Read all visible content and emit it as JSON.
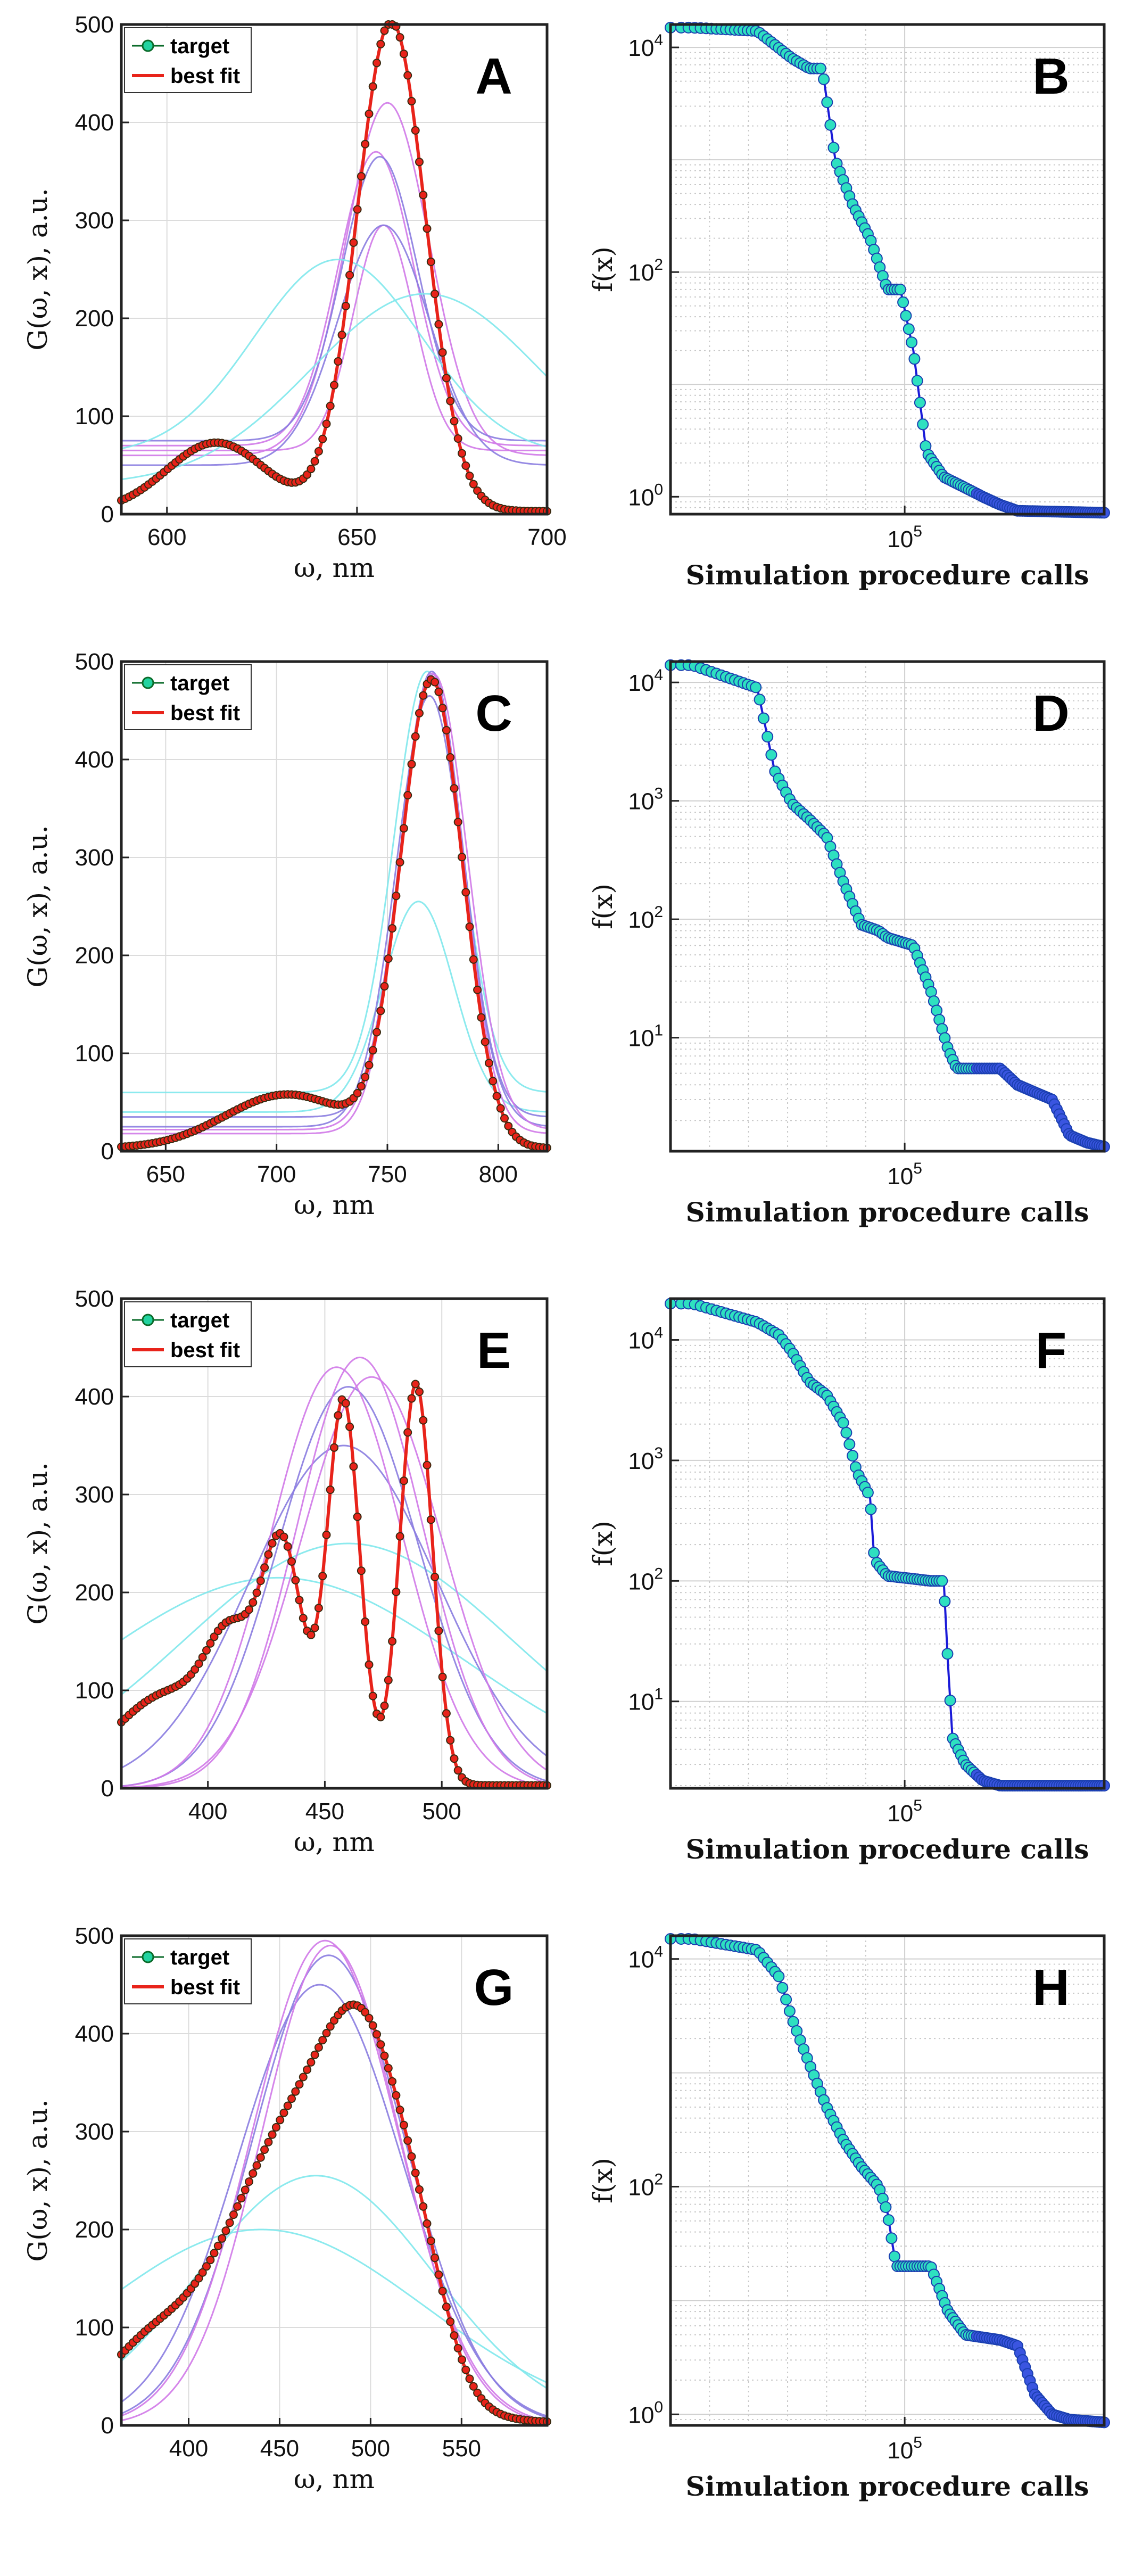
{
  "colors": {
    "target_fill": "#22d3a0",
    "target_edge": "#0b6b2a",
    "best_fit": "#e8231a",
    "conv_line": "#1a1ad8",
    "conv_marker_fill": "#2ee0c0",
    "conv_marker_edge": "#1a3fb0",
    "trial_pink": "#d079e8",
    "trial_violet": "#8a7ce0",
    "trial_cyan": "#7fe8ec"
  },
  "chart_data": [
    {
      "panel": "A",
      "type": "line",
      "legend": [
        "target",
        "best fit"
      ],
      "legend_position": "top-left",
      "xlabel": "ω, nm",
      "ylabel": "G(ω, x), a.u.",
      "xlim": [
        588,
        700
      ],
      "ylim": [
        0,
        500
      ],
      "xticks": [
        600,
        650,
        700
      ],
      "yticks": [
        0,
        100,
        200,
        300,
        400,
        500
      ],
      "target_peaks": [
        {
          "amp": 70,
          "center": 613,
          "width": 13
        },
        {
          "amp": 500,
          "center": 659,
          "width": 9
        }
      ],
      "trials": [
        {
          "color": "trial_pink",
          "peaks": [
            {
              "amp": 360,
              "center": 658,
              "width": 11
            }
          ],
          "base": 60
        },
        {
          "color": "trial_pink",
          "peaks": [
            {
              "amp": 300,
              "center": 655,
              "width": 10
            }
          ],
          "base": 70
        },
        {
          "color": "trial_pink",
          "peaks": [
            {
              "amp": 230,
              "center": 657,
              "width": 8
            }
          ],
          "base": 65
        },
        {
          "color": "trial_violet",
          "peaks": [
            {
              "amp": 245,
              "center": 657,
              "width": 12
            }
          ],
          "base": 50
        },
        {
          "color": "trial_violet",
          "peaks": [
            {
              "amp": 290,
              "center": 656,
              "width": 10
            }
          ],
          "base": 75
        },
        {
          "color": "trial_cyan",
          "peaks": [
            {
              "amp": 200,
              "center": 645,
              "width": 22
            }
          ],
          "base": 60
        },
        {
          "color": "trial_cyan",
          "peaks": [
            {
              "amp": 195,
              "center": 668,
              "width": 30
            }
          ],
          "base": 30
        }
      ]
    },
    {
      "panel": "B",
      "type": "line",
      "xlabel": "Simulation procedure calls",
      "ylabel": "f(x)",
      "yscale": "log",
      "ylim": [
        0.7,
        16000
      ],
      "yticks": [
        {
          "value": 1,
          "label": "10^0"
        },
        {
          "value": 100,
          "label": "10^2"
        },
        {
          "value": 10000,
          "label": "10^4"
        }
      ],
      "xtick": {
        "label": "10^5",
        "position": 0.54
      },
      "curve": [
        [
          0,
          15000
        ],
        [
          0.05,
          15000
        ],
        [
          0.2,
          14000
        ],
        [
          0.28,
          8000
        ],
        [
          0.32,
          6500
        ],
        [
          0.35,
          6500
        ],
        [
          0.38,
          1000
        ],
        [
          0.42,
          400
        ],
        [
          0.46,
          200
        ],
        [
          0.5,
          70
        ],
        [
          0.53,
          70
        ],
        [
          0.56,
          20
        ],
        [
          0.59,
          2.5
        ],
        [
          0.63,
          1.5
        ],
        [
          0.68,
          1.2
        ],
        [
          0.72,
          1.0
        ],
        [
          0.76,
          0.85
        ],
        [
          0.8,
          0.75
        ],
        [
          1.0,
          0.72
        ]
      ]
    },
    {
      "panel": "C",
      "type": "line",
      "legend": [
        "target",
        "best fit"
      ],
      "legend_position": "top-left",
      "xlabel": "ω, nm",
      "ylabel": "G(ω, x), a.u.",
      "xlim": [
        630,
        822
      ],
      "ylim": [
        0,
        500
      ],
      "xticks": [
        650,
        700,
        750,
        800
      ],
      "yticks": [
        0,
        100,
        200,
        300,
        400,
        500
      ],
      "target_peaks": [
        {
          "amp": 55,
          "center": 705,
          "width": 28
        },
        {
          "amp": 475,
          "center": 770,
          "width": 14
        }
      ],
      "trials": [
        {
          "color": "trial_cyan",
          "peaks": [
            {
              "amp": 215,
              "center": 764,
              "width": 16
            }
          ],
          "base": 40
        },
        {
          "color": "trial_cyan",
          "peaks": [
            {
              "amp": 430,
              "center": 768,
              "width": 15
            }
          ],
          "base": 60
        },
        {
          "color": "trial_violet",
          "peaks": [
            {
              "amp": 440,
              "center": 769,
              "width": 15
            }
          ],
          "base": 25
        },
        {
          "color": "trial_violet",
          "peaks": [
            {
              "amp": 455,
              "center": 770,
              "width": 14
            }
          ],
          "base": 35
        },
        {
          "color": "trial_pink",
          "peaks": [
            {
              "amp": 470,
              "center": 770,
              "width": 14
            }
          ],
          "base": 18
        },
        {
          "color": "trial_pink",
          "peaks": [
            {
              "amp": 465,
              "center": 771,
              "width": 15
            }
          ],
          "base": 22
        }
      ]
    },
    {
      "panel": "D",
      "type": "line",
      "xlabel": "Simulation procedure calls",
      "ylabel": "f(x)",
      "yscale": "log",
      "ylim": [
        1.1,
        15000
      ],
      "yticks": [
        {
          "value": 10,
          "label": "10^1"
        },
        {
          "value": 100,
          "label": "10^2"
        },
        {
          "value": 1000,
          "label": "10^3"
        },
        {
          "value": 10000,
          "label": "10^4"
        }
      ],
      "xtick": {
        "label": "10^5",
        "position": 0.54
      },
      "curve": [
        [
          0,
          14000
        ],
        [
          0.05,
          14000
        ],
        [
          0.2,
          9000
        ],
        [
          0.24,
          1800
        ],
        [
          0.28,
          950
        ],
        [
          0.32,
          700
        ],
        [
          0.36,
          500
        ],
        [
          0.4,
          200
        ],
        [
          0.44,
          90
        ],
        [
          0.48,
          80
        ],
        [
          0.5,
          70
        ],
        [
          0.56,
          60
        ],
        [
          0.6,
          25
        ],
        [
          0.64,
          8
        ],
        [
          0.66,
          5.5
        ],
        [
          0.76,
          5.5
        ],
        [
          0.8,
          4
        ],
        [
          0.88,
          3
        ],
        [
          0.92,
          1.5
        ],
        [
          0.96,
          1.3
        ],
        [
          1.0,
          1.2
        ]
      ]
    },
    {
      "panel": "E",
      "type": "line",
      "legend": [
        "target",
        "best fit"
      ],
      "legend_position": "top-left",
      "xlabel": "ω, nm",
      "ylabel": "G(ω, x), a.u.",
      "xlim": [
        363,
        545
      ],
      "ylim": [
        0,
        500
      ],
      "xticks": [
        400,
        450,
        500
      ],
      "yticks": [
        0,
        100,
        200,
        300,
        400,
        500
      ],
      "target_peaks": [
        {
          "amp": 95,
          "center": 385,
          "width": 25
        },
        {
          "amp": 100,
          "center": 410,
          "width": 10
        },
        {
          "amp": 230,
          "center": 432,
          "width": 9
        },
        {
          "amp": 390,
          "center": 458,
          "width": 7
        },
        {
          "amp": 410,
          "center": 489,
          "width": 7
        }
      ],
      "trials": [
        {
          "color": "trial_cyan",
          "peaks": [
            {
              "amp": 250,
              "center": 460,
              "width": 70
            }
          ],
          "base": 0
        },
        {
          "color": "trial_cyan",
          "peaks": [
            {
              "amp": 215,
              "center": 430,
              "width": 80
            }
          ],
          "base": 0
        },
        {
          "color": "trial_violet",
          "peaks": [
            {
              "amp": 350,
              "center": 458,
              "width": 40
            }
          ],
          "base": 0
        },
        {
          "color": "trial_violet",
          "peaks": [
            {
              "amp": 410,
              "center": 460,
              "width": 30
            }
          ],
          "base": 0
        },
        {
          "color": "trial_pink",
          "peaks": [
            {
              "amp": 430,
              "center": 455,
              "width": 28
            }
          ],
          "base": 0
        },
        {
          "color": "trial_pink",
          "peaks": [
            {
              "amp": 440,
              "center": 465,
              "width": 27
            }
          ],
          "base": 0
        },
        {
          "color": "trial_pink",
          "peaks": [
            {
              "amp": 420,
              "center": 470,
              "width": 30
            }
          ],
          "base": 0
        }
      ]
    },
    {
      "panel": "F",
      "type": "line",
      "xlabel": "Simulation procedure calls",
      "ylabel": "f(x)",
      "yscale": "log",
      "ylim": [
        1.9,
        22000
      ],
      "yticks": [
        {
          "value": 10,
          "label": "10^1"
        },
        {
          "value": 100,
          "label": "10^2"
        },
        {
          "value": 1000,
          "label": "10^3"
        },
        {
          "value": 10000,
          "label": "10^4"
        }
      ],
      "xtick": {
        "label": "10^5",
        "position": 0.54
      },
      "curve": [
        [
          0,
          20000
        ],
        [
          0.05,
          20000
        ],
        [
          0.2,
          14000
        ],
        [
          0.25,
          11000
        ],
        [
          0.28,
          8000
        ],
        [
          0.32,
          4500
        ],
        [
          0.36,
          3500
        ],
        [
          0.4,
          2000
        ],
        [
          0.43,
          800
        ],
        [
          0.46,
          500
        ],
        [
          0.47,
          150
        ],
        [
          0.5,
          110
        ],
        [
          0.55,
          105
        ],
        [
          0.6,
          100
        ],
        [
          0.63,
          100
        ],
        [
          0.64,
          20
        ],
        [
          0.65,
          5
        ],
        [
          0.68,
          3
        ],
        [
          0.72,
          2.2
        ],
        [
          0.76,
          2.0
        ],
        [
          1.0,
          2.0
        ]
      ]
    },
    {
      "panel": "G",
      "type": "line",
      "legend": [
        "target",
        "best fit"
      ],
      "legend_position": "top-left",
      "xlabel": "ω, nm",
      "ylabel": "G(ω, x), a.u.",
      "xlim": [
        363,
        597
      ],
      "ylim": [
        0,
        500
      ],
      "xticks": [
        400,
        450,
        500,
        550
      ],
      "yticks": [
        0,
        100,
        200,
        300,
        400,
        500
      ],
      "target_peaks": [
        {
          "amp": 60,
          "center": 375,
          "width": 25
        },
        {
          "amp": 300,
          "center": 460,
          "width": 40
        },
        {
          "amp": 220,
          "center": 500,
          "width": 22
        },
        {
          "amp": 60,
          "center": 530,
          "width": 15
        }
      ],
      "trials": [
        {
          "color": "trial_cyan",
          "peaks": [
            {
              "amp": 200,
              "center": 440,
              "width": 90
            }
          ],
          "base": 0
        },
        {
          "color": "trial_cyan",
          "peaks": [
            {
              "amp": 255,
              "center": 470,
              "width": 65
            }
          ],
          "base": 0
        },
        {
          "color": "trial_violet",
          "peaks": [
            {
              "amp": 450,
              "center": 472,
              "width": 45
            }
          ],
          "base": 0
        },
        {
          "color": "trial_violet",
          "peaks": [
            {
              "amp": 480,
              "center": 477,
              "width": 42
            }
          ],
          "base": 0
        },
        {
          "color": "trial_pink",
          "peaks": [
            {
              "amp": 495,
              "center": 475,
              "width": 40
            }
          ],
          "base": 0
        },
        {
          "color": "trial_pink",
          "peaks": [
            {
              "amp": 490,
              "center": 478,
              "width": 38
            }
          ],
          "base": 0
        }
      ]
    },
    {
      "panel": "H",
      "type": "line",
      "xlabel": "Simulation procedure calls",
      "ylabel": "f(x)",
      "yscale": "log",
      "ylim": [
        0.8,
        16000
      ],
      "yticks": [
        {
          "value": 1,
          "label": "10^0"
        },
        {
          "value": 100,
          "label": "10^2"
        },
        {
          "value": 10000,
          "label": "10^4"
        }
      ],
      "xtick": {
        "label": "10^5",
        "position": 0.54
      },
      "curve": [
        [
          0,
          15000
        ],
        [
          0.05,
          15000
        ],
        [
          0.2,
          12000
        ],
        [
          0.25,
          7000
        ],
        [
          0.28,
          3000
        ],
        [
          0.32,
          1200
        ],
        [
          0.36,
          500
        ],
        [
          0.4,
          250
        ],
        [
          0.44,
          150
        ],
        [
          0.48,
          100
        ],
        [
          0.5,
          60
        ],
        [
          0.52,
          20
        ],
        [
          0.6,
          20
        ],
        [
          0.64,
          8
        ],
        [
          0.68,
          5
        ],
        [
          0.76,
          4.5
        ],
        [
          0.8,
          4
        ],
        [
          0.84,
          1.5
        ],
        [
          0.88,
          1.0
        ],
        [
          0.92,
          0.9
        ],
        [
          1.0,
          0.85
        ]
      ]
    }
  ]
}
